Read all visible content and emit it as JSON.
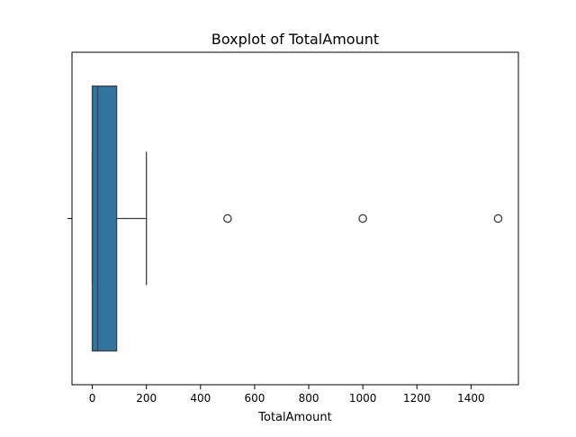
{
  "chart_data": {
    "type": "boxplot",
    "title": "Boxplot of TotalAmount",
    "xlabel": "TotalAmount",
    "ylabel": "",
    "orientation": "horizontal",
    "xlim": [
      -75,
      1575
    ],
    "xticks": [
      0,
      200,
      400,
      600,
      800,
      1000,
      1200,
      1400
    ],
    "xtick_labels": [
      "0",
      "200",
      "400",
      "600",
      "800",
      "1000",
      "1200",
      "1400"
    ],
    "grid": false,
    "box": {
      "whisker_low": 0,
      "q1": 0,
      "median": 20,
      "q3": 90,
      "whisker_high": 200,
      "outliers": [
        500,
        1000,
        1500
      ]
    },
    "colors": {
      "box_fill": "#3274a1",
      "line": "#3f3f3f"
    }
  }
}
